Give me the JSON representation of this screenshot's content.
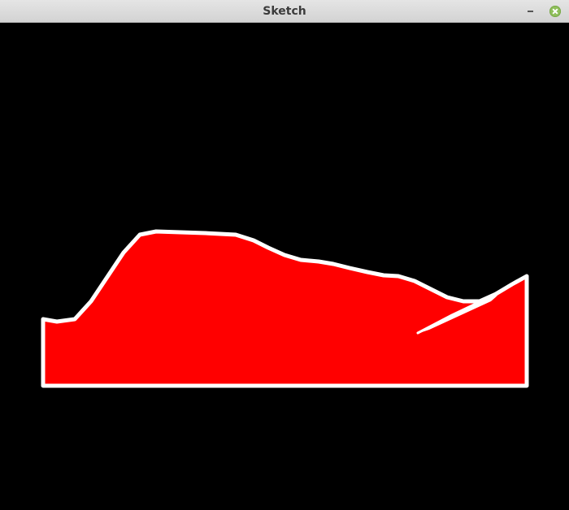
{
  "window": {
    "title": "Sketch",
    "title_color": "#3b3b3b",
    "close_button_color": "#8fbf5b"
  },
  "canvas": {
    "background": "#000000",
    "shape_fill": "#ff0000",
    "shape_stroke": "#ffffff"
  },
  "icons": {
    "minimize": "minimize-icon",
    "close": "close-icon"
  }
}
